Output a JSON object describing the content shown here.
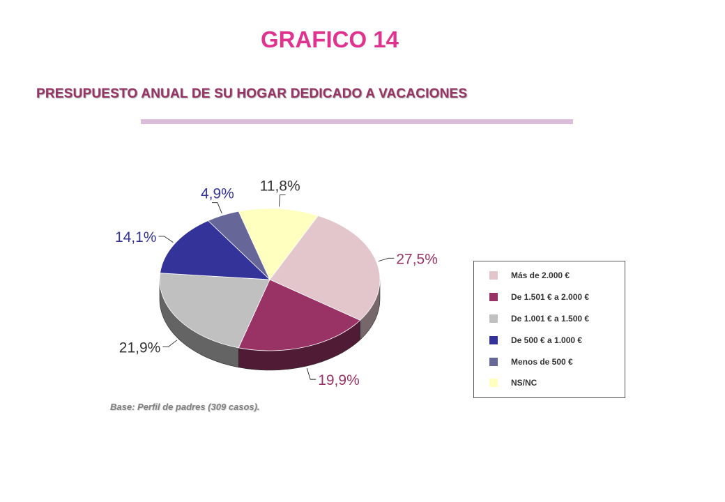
{
  "title": "GRAFICO 14",
  "subtitle": "PRESUPUESTO ANUAL DE SU HOGAR DEDICADO A VACACIONES",
  "note": "Base: Perfil de padres (309 casos).",
  "chart_data": {
    "type": "pie",
    "style": "3d",
    "categories": [
      "Más de 2.000 €",
      "De 1.501 € a 2.000 €",
      "De 1.001 € a 1.500 €",
      "De 500 €  a 1.000 €",
      "Menos de 500 €",
      "NS/NC"
    ],
    "values": [
      27.5,
      19.9,
      21.9,
      14.1,
      4.9,
      11.8
    ],
    "data_labels": [
      "27,5%",
      "19,9%",
      "21,9%",
      "14,1%",
      "4,9%",
      "11,8%"
    ],
    "colors": [
      "#e3c6cb",
      "#993366",
      "#c0c0c0",
      "#333399",
      "#666699",
      "#ffffc0"
    ],
    "label_colors": [
      "#993366",
      "#993366",
      "#333333",
      "#333399",
      "#333399",
      "#333333"
    ],
    "legend_position": "right"
  }
}
